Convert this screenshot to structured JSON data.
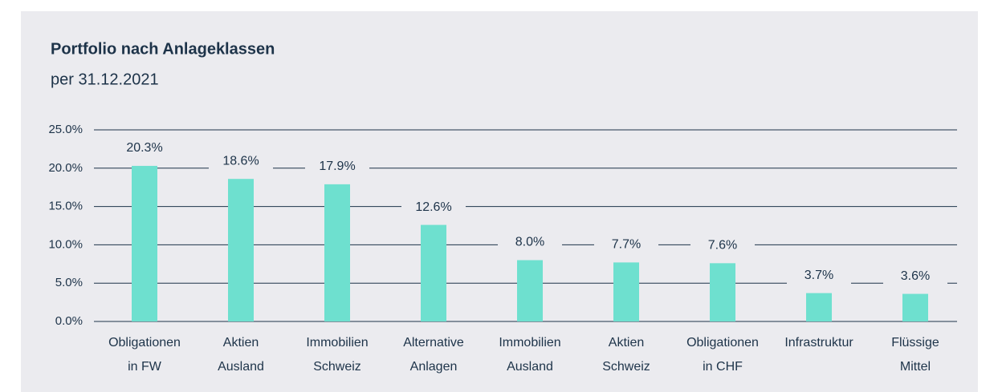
{
  "chart_data": {
    "type": "bar",
    "title": "Portfolio nach Anlageklassen",
    "subtitle": "per 31.12.2021",
    "categories": [
      [
        "Obligationen",
        "in FW"
      ],
      [
        "Aktien",
        "Ausland"
      ],
      [
        "Immobilien",
        "Schweiz"
      ],
      [
        "Alternative",
        "Anlagen"
      ],
      [
        "Immobilien",
        "Ausland"
      ],
      [
        "Aktien",
        "Schweiz"
      ],
      [
        "Obligationen",
        "in CHF"
      ],
      [
        "Infrastruktur"
      ],
      [
        "Flüssige",
        "Mittel"
      ]
    ],
    "values": [
      20.3,
      18.6,
      17.9,
      12.6,
      8.0,
      7.7,
      7.6,
      3.7,
      3.6
    ],
    "value_labels": [
      "20.3%",
      "18.6%",
      "17.9%",
      "12.6%",
      "8.0%",
      "7.7%",
      "7.6%",
      "3.7%",
      "3.6%"
    ],
    "color": "#6ee0cf",
    "ylim": [
      0,
      25
    ],
    "yticks": [
      {
        "value": 0,
        "label": "0.0%"
      },
      {
        "value": 5,
        "label": "5.0%"
      },
      {
        "value": 10,
        "label": "10.0%"
      },
      {
        "value": 15,
        "label": "15.0%"
      },
      {
        "value": 20,
        "label": "20.0%"
      },
      {
        "value": 25,
        "label": "25.0%"
      }
    ],
    "grid": true
  }
}
